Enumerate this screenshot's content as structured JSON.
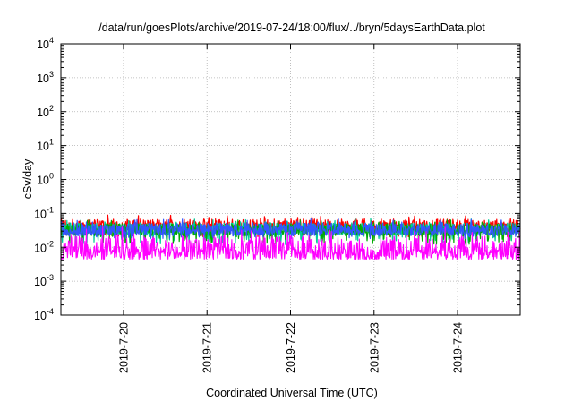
{
  "chart_data": {
    "type": "line",
    "title": "/data/run/goesPlots/archive/2019-07-24/18:00/flux/../bryn/5daysEarthData.plot",
    "xlabel": "Coordinated Universal Time (UTC)",
    "ylabel": "cSv/day",
    "yscale": "log",
    "ylim": [
      0.0001,
      10000
    ],
    "xlim": [
      "2019-07-19 06:00",
      "2019-07-24 18:00"
    ],
    "grid": true,
    "x_ticks": [
      {
        "label": "2019-7-20",
        "date": "2019-07-20 00:00"
      },
      {
        "label": "2019-7-21",
        "date": "2019-07-21 00:00"
      },
      {
        "label": "2019-7-22",
        "date": "2019-07-22 00:00"
      },
      {
        "label": "2019-7-23",
        "date": "2019-07-23 00:00"
      },
      {
        "label": "2019-7-24",
        "date": "2019-07-24 00:00"
      }
    ],
    "y_ticks": [
      {
        "base": "10",
        "exp": "-4",
        "value": 0.0001
      },
      {
        "base": "10",
        "exp": "-3",
        "value": 0.001
      },
      {
        "base": "10",
        "exp": "-2",
        "value": 0.01
      },
      {
        "base": "10",
        "exp": "-1",
        "value": 0.1
      },
      {
        "base": "10",
        "exp": "0",
        "value": 1
      },
      {
        "base": "10",
        "exp": "1",
        "value": 10
      },
      {
        "base": "10",
        "exp": "2",
        "value": 100
      },
      {
        "base": "10",
        "exp": "3",
        "value": 1000
      },
      {
        "base": "10",
        "exp": "4",
        "value": 10000
      }
    ],
    "series": [
      {
        "color": "#ff0000",
        "typical": 0.045,
        "low": 0.02,
        "high": 0.09
      },
      {
        "color": "#00cc99",
        "typical": 0.035,
        "low": 0.012,
        "high": 0.07
      },
      {
        "color": "#00aa00",
        "typical": 0.033,
        "low": 0.012,
        "high": 0.065
      },
      {
        "color": "#3355ff",
        "typical": 0.034,
        "low": 0.018,
        "high": 0.07
      },
      {
        "color": "#ff00ff",
        "typical": 0.009,
        "low": 0.0045,
        "high": 0.04
      }
    ]
  }
}
